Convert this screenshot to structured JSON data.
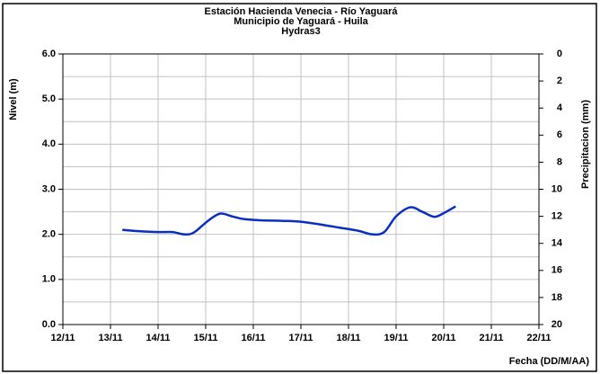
{
  "chart_data": {
    "type": "line",
    "title": [
      "Estación Hacienda Venecia - Río  Yaguará",
      "Municipio de Yaguará - Huila",
      "Hydras3"
    ],
    "ylabel": "Nivel (m)",
    "y2label": "Precipitacion (mm)",
    "xlabel": "Fecha (DD/M/AA)",
    "x": [
      13.25,
      13.6,
      14.0,
      14.3,
      14.55,
      14.75,
      15.05,
      15.3,
      15.55,
      15.8,
      16.2,
      16.6,
      17.0,
      17.4,
      17.8,
      18.2,
      18.5,
      18.75,
      19.0,
      19.3,
      19.55,
      19.8,
      20.0,
      20.25
    ],
    "series": [
      {
        "name": "Nivel",
        "color": "#0a2fbf",
        "values": [
          2.1,
          2.07,
          2.05,
          2.05,
          2.0,
          2.04,
          2.3,
          2.46,
          2.4,
          2.34,
          2.31,
          2.3,
          2.28,
          2.22,
          2.15,
          2.08,
          2.0,
          2.05,
          2.4,
          2.6,
          2.5,
          2.39,
          2.47,
          2.62
        ]
      }
    ],
    "xlim": [
      12,
      22
    ],
    "xticks": [
      {
        "value": 12,
        "label": "12/11"
      },
      {
        "value": 13,
        "label": "13/11"
      },
      {
        "value": 14,
        "label": "14/11"
      },
      {
        "value": 15,
        "label": "15/11"
      },
      {
        "value": 16,
        "label": "16/11"
      },
      {
        "value": 17,
        "label": "17/11"
      },
      {
        "value": 18,
        "label": "18/11"
      },
      {
        "value": 19,
        "label": "19/11"
      },
      {
        "value": 20,
        "label": "20/11"
      },
      {
        "value": 21,
        "label": "21/11"
      },
      {
        "value": 22,
        "label": "22/11"
      }
    ],
    "ylim": [
      0,
      6
    ],
    "yticks": [
      {
        "value": 0,
        "label": "0.0"
      },
      {
        "value": 1,
        "label": "1.0"
      },
      {
        "value": 2,
        "label": "2.0"
      },
      {
        "value": 3,
        "label": "3.0"
      },
      {
        "value": 4,
        "label": "4.0"
      },
      {
        "value": 5,
        "label": "5.0"
      },
      {
        "value": 6,
        "label": "6.0"
      }
    ],
    "minor_grid_step": 0.5,
    "y2lim": [
      0,
      20
    ],
    "y2_inverted": true,
    "y2ticks": [
      0,
      2,
      4,
      6,
      8,
      10,
      12,
      14,
      16,
      18,
      20
    ],
    "grid": true
  }
}
